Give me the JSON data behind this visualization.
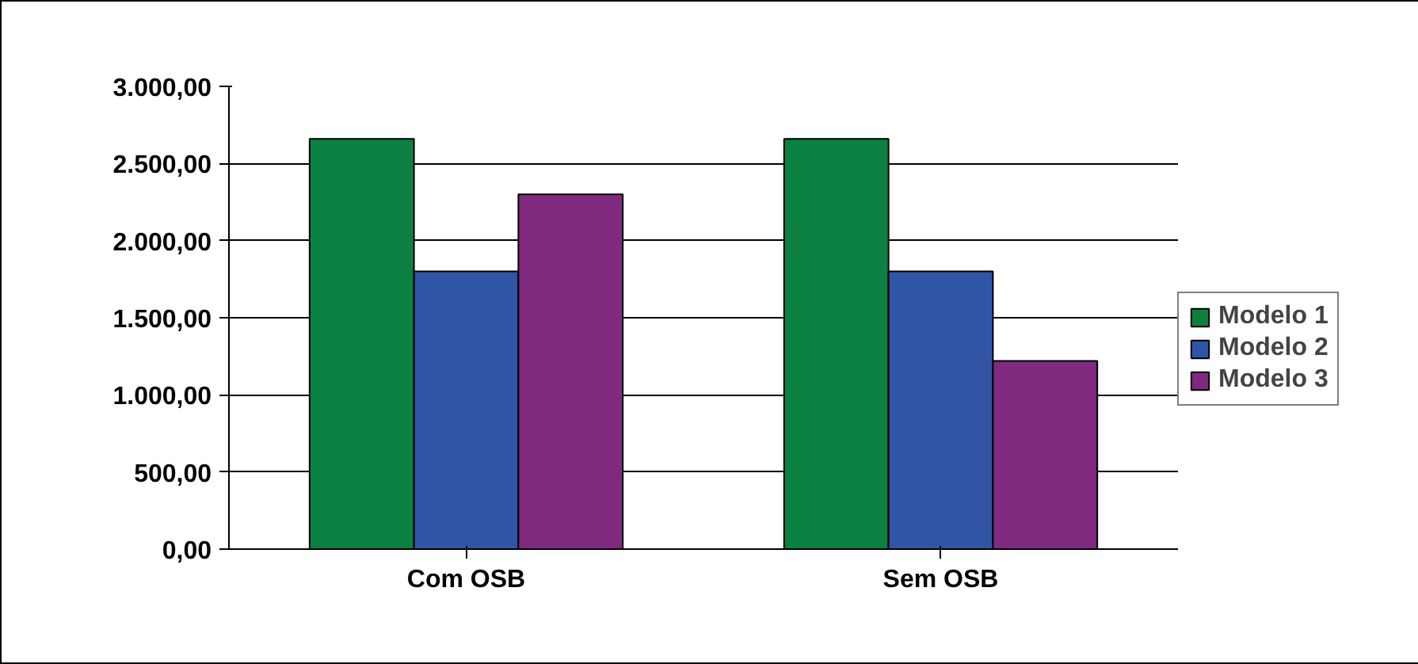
{
  "chart_data": {
    "type": "bar",
    "categories": [
      "Com OSB",
      "Sem OSB"
    ],
    "series": [
      {
        "name": "Modelo 1",
        "color": "#0b8040",
        "values": [
          2660,
          2660
        ]
      },
      {
        "name": "Modelo 2",
        "color": "#3155a6",
        "values": [
          1800,
          1800
        ]
      },
      {
        "name": "Modelo 3",
        "color": "#7f2a7f",
        "values": [
          2300,
          1220
        ]
      }
    ],
    "ylim": [
      0,
      3000
    ],
    "yticks": [
      {
        "value": 0,
        "label": "0,00"
      },
      {
        "value": 500,
        "label": "500,00"
      },
      {
        "value": 1000,
        "label": "1.000,00"
      },
      {
        "value": 1500,
        "label": "1.500,00"
      },
      {
        "value": 2000,
        "label": "2.000,00"
      },
      {
        "value": 2500,
        "label": "2.500,00"
      },
      {
        "value": 3000,
        "label": "3.000,00"
      }
    ],
    "grid": "y",
    "legend": "right"
  }
}
